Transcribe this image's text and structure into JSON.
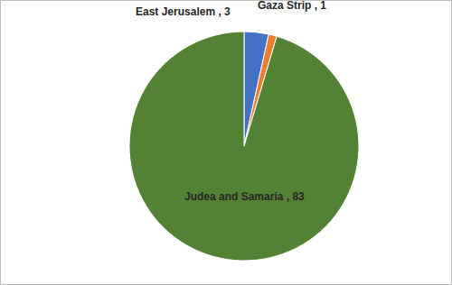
{
  "chart_data": {
    "type": "pie",
    "categories": [
      "East Jerusalem",
      "Gaza Strip",
      "Judea and Samaria"
    ],
    "values": [
      3,
      1,
      83
    ],
    "value_labels": [
      "East Jerusalem , 3",
      "Gaza Strip , 1",
      "Judea and Samaria , 83"
    ],
    "colors": [
      "#4472c4",
      "#ed7d31",
      "#548235"
    ],
    "data_labels": true
  }
}
